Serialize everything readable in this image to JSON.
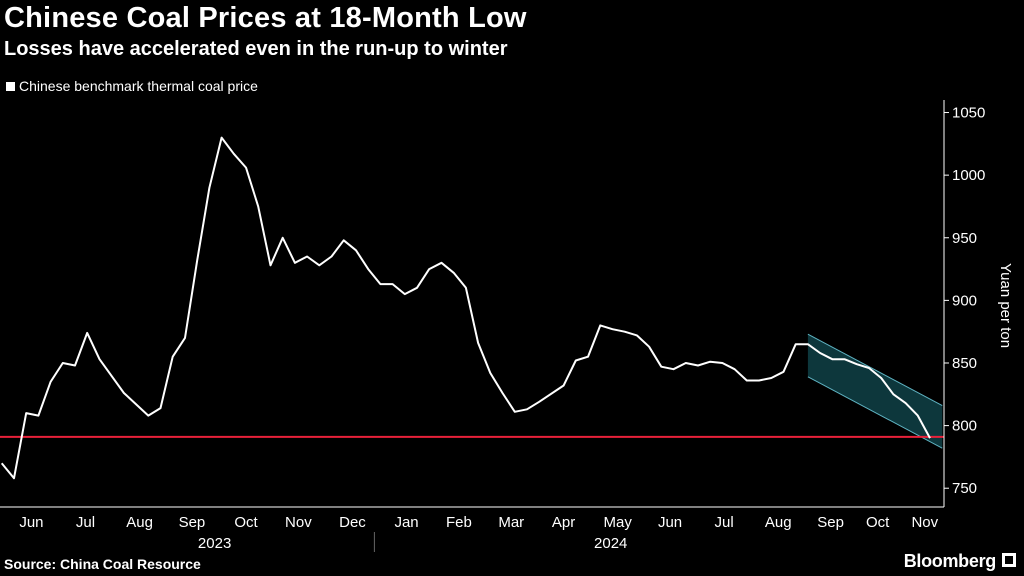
{
  "title": "Chinese Coal Prices at 18-Month Low",
  "subtitle": "Losses have accelerated even in the run-up to winter",
  "source": "Source: China Coal Resource",
  "brand": "Bloomberg",
  "colors": {
    "line": "#ffffff",
    "reference": "#e8213a",
    "channel_fill": "#0e3a3f",
    "channel_edge": "#5fb3c2"
  },
  "chart_data": {
    "type": "line",
    "series": [
      {
        "name": "Chinese benchmark thermal coal price",
        "points": [
          [
            "2023-05-29",
            770
          ],
          [
            "2023-06-05",
            758
          ],
          [
            "2023-06-12",
            810
          ],
          [
            "2023-06-19",
            808
          ],
          [
            "2023-06-26",
            835
          ],
          [
            "2023-07-03",
            850
          ],
          [
            "2023-07-10",
            848
          ],
          [
            "2023-07-17",
            874
          ],
          [
            "2023-07-24",
            853
          ],
          [
            "2023-08-07",
            826
          ],
          [
            "2023-08-21",
            808
          ],
          [
            "2023-08-28",
            814
          ],
          [
            "2023-09-04",
            855
          ],
          [
            "2023-09-11",
            870
          ],
          [
            "2023-09-18",
            932
          ],
          [
            "2023-09-25",
            990
          ],
          [
            "2023-10-02",
            1030
          ],
          [
            "2023-10-09",
            1017
          ],
          [
            "2023-10-16",
            1006
          ],
          [
            "2023-10-23",
            975
          ],
          [
            "2023-10-30",
            928
          ],
          [
            "2023-11-06",
            950
          ],
          [
            "2023-11-13",
            930
          ],
          [
            "2023-11-20",
            935
          ],
          [
            "2023-11-27",
            928
          ],
          [
            "2023-12-04",
            935
          ],
          [
            "2023-12-11",
            948
          ],
          [
            "2023-12-18",
            940
          ],
          [
            "2023-12-25",
            925
          ],
          [
            "2024-01-01",
            913
          ],
          [
            "2024-01-08",
            913
          ],
          [
            "2024-01-15",
            905
          ],
          [
            "2024-01-22",
            910
          ],
          [
            "2024-01-29",
            925
          ],
          [
            "2024-02-05",
            930
          ],
          [
            "2024-02-12",
            922
          ],
          [
            "2024-02-19",
            910
          ],
          [
            "2024-02-26",
            866
          ],
          [
            "2024-03-04",
            842
          ],
          [
            "2024-03-11",
            826
          ],
          [
            "2024-03-18",
            811
          ],
          [
            "2024-03-25",
            813
          ],
          [
            "2024-04-01",
            819
          ],
          [
            "2024-04-15",
            832
          ],
          [
            "2024-04-22",
            852
          ],
          [
            "2024-04-29",
            855
          ],
          [
            "2024-05-06",
            880
          ],
          [
            "2024-05-13",
            877
          ],
          [
            "2024-05-20",
            875
          ],
          [
            "2024-05-27",
            872
          ],
          [
            "2024-06-03",
            863
          ],
          [
            "2024-06-10",
            847
          ],
          [
            "2024-06-17",
            845
          ],
          [
            "2024-06-24",
            850
          ],
          [
            "2024-07-01",
            848
          ],
          [
            "2024-07-08",
            851
          ],
          [
            "2024-07-15",
            850
          ],
          [
            "2024-07-22",
            845
          ],
          [
            "2024-07-29",
            836
          ],
          [
            "2024-08-05",
            836
          ],
          [
            "2024-08-12",
            838
          ],
          [
            "2024-08-19",
            843
          ],
          [
            "2024-08-26",
            865
          ],
          [
            "2024-09-02",
            865
          ],
          [
            "2024-09-09",
            858
          ],
          [
            "2024-09-16",
            853
          ],
          [
            "2024-09-23",
            853
          ],
          [
            "2024-09-30",
            849
          ],
          [
            "2024-10-07",
            846
          ],
          [
            "2024-10-14",
            838
          ],
          [
            "2024-10-21",
            825
          ],
          [
            "2024-10-28",
            818
          ],
          [
            "2024-11-04",
            808
          ],
          [
            "2024-11-11",
            790
          ]
        ]
      }
    ],
    "reference_line": 791,
    "trend_channel": {
      "upper": [
        [
          "2024-09-02",
          873
        ],
        [
          "2024-11-18",
          816
        ]
      ],
      "lower": [
        [
          "2024-09-02",
          839
        ],
        [
          "2024-11-18",
          782
        ]
      ]
    },
    "ylabel": "Yuan per ton",
    "ylim": [
      735,
      1060
    ],
    "yticks": [
      750,
      800,
      850,
      900,
      950,
      1000,
      1050
    ],
    "xlim": [
      "2023-05-28",
      "2024-11-19"
    ],
    "month_labels": [
      {
        "label": "Jun",
        "date": "2023-06-15"
      },
      {
        "label": "Jul",
        "date": "2023-07-16"
      },
      {
        "label": "Aug",
        "date": "2023-08-16"
      },
      {
        "label": "Sep",
        "date": "2023-09-15"
      },
      {
        "label": "Oct",
        "date": "2023-10-16"
      },
      {
        "label": "Nov",
        "date": "2023-11-15"
      },
      {
        "label": "Dec",
        "date": "2023-12-16"
      },
      {
        "label": "Jan",
        "date": "2024-01-16"
      },
      {
        "label": "Feb",
        "date": "2024-02-15"
      },
      {
        "label": "Mar",
        "date": "2024-03-16"
      },
      {
        "label": "Apr",
        "date": "2024-04-15"
      },
      {
        "label": "May",
        "date": "2024-05-16"
      },
      {
        "label": "Jun",
        "date": "2024-06-15"
      },
      {
        "label": "Jul",
        "date": "2024-07-16"
      },
      {
        "label": "Aug",
        "date": "2024-08-16"
      },
      {
        "label": "Sep",
        "date": "2024-09-15"
      },
      {
        "label": "Oct",
        "date": "2024-10-12"
      },
      {
        "label": "Nov",
        "date": "2024-11-08"
      }
    ],
    "year_labels": [
      {
        "label": "2023",
        "date": "2023-09-28"
      },
      {
        "label": "2024",
        "date": "2024-05-12"
      }
    ],
    "grid": false,
    "legend": "top-left"
  }
}
